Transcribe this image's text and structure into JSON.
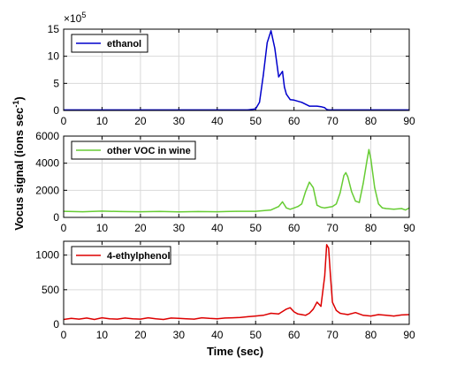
{
  "chart_data": [
    {
      "type": "line",
      "exponent_label": "×10",
      "exponent_power": "5",
      "xlim": [
        0,
        90
      ],
      "ylim": [
        0,
        15
      ],
      "x_ticks": [
        0,
        10,
        20,
        30,
        40,
        50,
        60,
        70,
        80,
        90
      ],
      "y_ticks": [
        0,
        5,
        10,
        15
      ],
      "x_tick_labels": [
        "0",
        "10",
        "20",
        "30",
        "40",
        "50",
        "60",
        "70",
        "80",
        "90"
      ],
      "y_tick_labels": [
        "0",
        "5",
        "10",
        "15"
      ],
      "grid": true,
      "legend": "top-left",
      "series": [
        {
          "name": "ethanol",
          "color": "#0000cc",
          "x": [
            0,
            10,
            20,
            30,
            40,
            48,
            50,
            51,
            52,
            53,
            54,
            55,
            56,
            57,
            57.5,
            58,
            59,
            60,
            62,
            64,
            66,
            67,
            68,
            68.5,
            69,
            70,
            80,
            90
          ],
          "y": [
            0.1,
            0.1,
            0.1,
            0.1,
            0.1,
            0.1,
            0.3,
            1.5,
            6.5,
            12.5,
            14.7,
            11.5,
            6.2,
            7.2,
            4.3,
            3.0,
            2.0,
            1.9,
            1.5,
            0.8,
            0.8,
            0.7,
            0.5,
            0.2,
            0.1,
            0.1,
            0.1,
            0.1
          ]
        }
      ]
    },
    {
      "type": "line",
      "xlim": [
        0,
        90
      ],
      "ylim": [
        0,
        6000
      ],
      "x_ticks": [
        0,
        10,
        20,
        30,
        40,
        50,
        60,
        70,
        80,
        90
      ],
      "y_ticks": [
        0,
        2000,
        4000,
        6000
      ],
      "x_tick_labels": [
        "0",
        "10",
        "20",
        "30",
        "40",
        "50",
        "60",
        "70",
        "80",
        "90"
      ],
      "y_tick_labels": [
        "0",
        "2000",
        "4000",
        "6000"
      ],
      "grid": true,
      "legend": "top-left",
      "series": [
        {
          "name": "other VOC in wine",
          "color": "#66cc33",
          "x": [
            0,
            5,
            10,
            15,
            20,
            25,
            30,
            35,
            40,
            45,
            50,
            54,
            56,
            57,
            58,
            59,
            60,
            61,
            62,
            63,
            64,
            65,
            66,
            67,
            68,
            70,
            71,
            72,
            73,
            73.5,
            74,
            75,
            76,
            77,
            78,
            79,
            79.5,
            80,
            81,
            82,
            83,
            84,
            86,
            88,
            89,
            90
          ],
          "y": [
            450,
            420,
            460,
            430,
            420,
            440,
            410,
            430,
            420,
            450,
            450,
            550,
            800,
            1150,
            700,
            600,
            700,
            800,
            1000,
            1900,
            2600,
            2200,
            900,
            750,
            700,
            800,
            1000,
            1800,
            3100,
            3300,
            3000,
            1900,
            1200,
            1100,
            2500,
            4200,
            5000,
            4300,
            2200,
            1000,
            700,
            650,
            600,
            650,
            550,
            700
          ]
        }
      ]
    },
    {
      "type": "line",
      "xlim": [
        0,
        90
      ],
      "ylim": [
        0,
        1200
      ],
      "x_ticks": [
        0,
        10,
        20,
        30,
        40,
        50,
        60,
        70,
        80,
        90
      ],
      "y_ticks": [
        0,
        500,
        1000
      ],
      "x_tick_labels": [
        "0",
        "10",
        "20",
        "30",
        "40",
        "50",
        "60",
        "70",
        "80",
        "90"
      ],
      "y_tick_labels": [
        "0",
        "500",
        "1000"
      ],
      "grid": true,
      "legend": "top-left",
      "series": [
        {
          "name": "4-ethylphenol",
          "color": "#dd0000",
          "x": [
            0,
            2,
            4,
            6,
            8,
            10,
            12,
            14,
            16,
            18,
            20,
            22,
            24,
            26,
            28,
            30,
            32,
            34,
            36,
            38,
            40,
            42,
            44,
            46,
            48,
            50,
            52,
            54,
            56,
            58,
            59,
            60,
            61,
            62,
            63,
            64,
            65,
            66,
            67,
            68,
            68.5,
            69,
            69.5,
            70,
            71,
            72,
            73,
            74,
            76,
            78,
            80,
            82,
            84,
            86,
            88,
            90
          ],
          "y": [
            70,
            85,
            75,
            90,
            70,
            95,
            80,
            75,
            90,
            80,
            75,
            95,
            80,
            70,
            90,
            85,
            80,
            75,
            95,
            85,
            80,
            90,
            95,
            100,
            110,
            120,
            130,
            160,
            150,
            220,
            240,
            180,
            150,
            140,
            130,
            160,
            220,
            320,
            260,
            700,
            1150,
            1100,
            700,
            320,
            200,
            160,
            150,
            140,
            170,
            130,
            120,
            140,
            130,
            120,
            135,
            140
          ]
        }
      ]
    }
  ],
  "xlabel": "Time (sec)",
  "ylabel_main": "Vocus signal (ions sec",
  "ylabel_sup": "-1",
  "ylabel_close": ")"
}
